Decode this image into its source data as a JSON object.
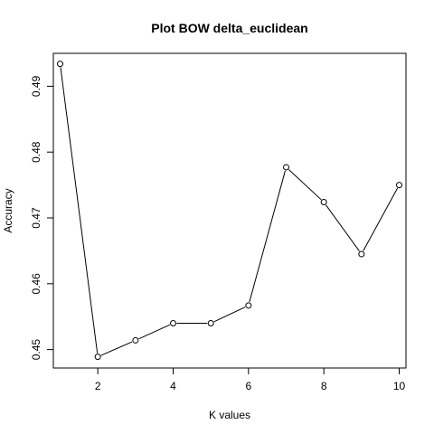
{
  "chart_data": {
    "type": "line",
    "title": "Plot BOW delta_euclidean",
    "xlabel": "K values",
    "ylabel": "Accuracy",
    "x": [
      1,
      2,
      3,
      4,
      5,
      6,
      7,
      8,
      9,
      10
    ],
    "series": [
      {
        "values": [
          0.4934,
          0.4489,
          0.4514,
          0.454,
          0.454,
          0.4567,
          0.4777,
          0.4724,
          0.4645,
          0.475
        ],
        "color": "#000000",
        "marker": "open-circle"
      }
    ],
    "xlim": [
      0.82,
      10.18
    ],
    "ylim": [
      0.4472,
      0.495
    ],
    "xticks": [
      2,
      4,
      6,
      8,
      10
    ],
    "yticks": [
      0.45,
      0.46,
      0.47,
      0.48,
      0.49
    ],
    "grid": false,
    "legend": "none"
  }
}
